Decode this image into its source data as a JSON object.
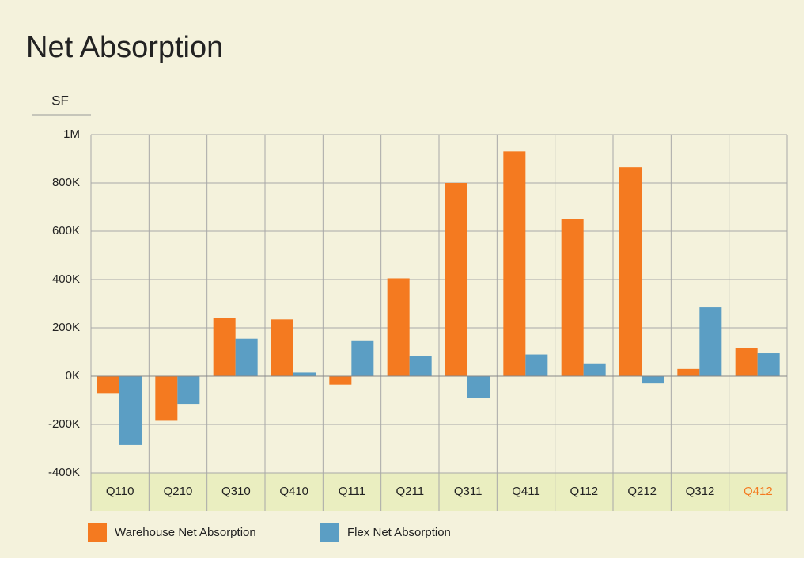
{
  "chart_data": {
    "type": "bar",
    "title": "Net Absorption",
    "y_label": "SF",
    "categories": [
      "Q110",
      "Q210",
      "Q310",
      "Q410",
      "Q111",
      "Q211",
      "Q311",
      "Q411",
      "Q112",
      "Q212",
      "Q312",
      "Q412"
    ],
    "category_label_colors": [
      "#222222",
      "#222222",
      "#222222",
      "#222222",
      "#222222",
      "#222222",
      "#222222",
      "#222222",
      "#222222",
      "#222222",
      "#222222",
      "#f47a20"
    ],
    "series": [
      {
        "name": "Warehouse Net Absorption",
        "color": "#f47a20",
        "values": [
          -70000,
          -185000,
          240000,
          235000,
          -35000,
          405000,
          800000,
          930000,
          650000,
          865000,
          30000,
          115000
        ]
      },
      {
        "name": "Flex Net Absorption",
        "color": "#5b9ec4",
        "values": [
          -285000,
          -115000,
          155000,
          15000,
          145000,
          85000,
          -90000,
          90000,
          50000,
          -30000,
          285000,
          95000
        ]
      }
    ],
    "ylim": [
      -400000,
      1000000
    ],
    "yticks": [
      {
        "value": -400000,
        "label": "-400K"
      },
      {
        "value": -200000,
        "label": "-200K"
      },
      {
        "value": 0,
        "label": "0K"
      },
      {
        "value": 200000,
        "label": "200K"
      },
      {
        "value": 400000,
        "label": "400K"
      },
      {
        "value": 600000,
        "label": "600K"
      },
      {
        "value": 800000,
        "label": "800K"
      },
      {
        "value": 1000000,
        "label": "1M"
      }
    ],
    "grid": true,
    "legend": "bottom-left"
  }
}
